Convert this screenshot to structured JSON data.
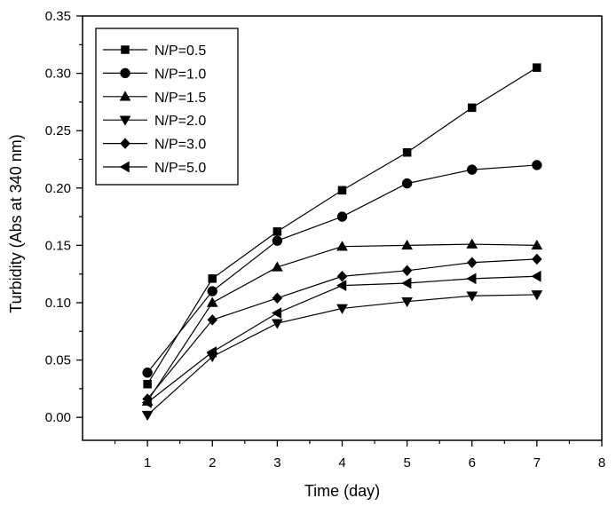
{
  "chart_data": {
    "type": "line",
    "xlabel": "Time (day)",
    "ylabel": "Turbidity (Abs at 340 nm)",
    "xlim": [
      0,
      8
    ],
    "ylim": [
      -0.02,
      0.35
    ],
    "x_ticks": [
      1,
      2,
      3,
      4,
      5,
      6,
      7,
      8
    ],
    "x_tick_labels": [
      "1",
      "2",
      "3",
      "4",
      "5",
      "6",
      "7",
      "8"
    ],
    "y_ticks": [
      0.0,
      0.05,
      0.1,
      0.15,
      0.2,
      0.25,
      0.3,
      0.35
    ],
    "y_tick_labels": [
      "0.00",
      "0.05",
      "0.10",
      "0.15",
      "0.20",
      "0.25",
      "0.30",
      "0.35"
    ],
    "grid": false,
    "legend_position": "top-left",
    "color": "#000000",
    "x": [
      1,
      2,
      3,
      4,
      5,
      6,
      7
    ],
    "series": [
      {
        "name": "N/P=0.5",
        "marker": "square",
        "values": [
          0.029,
          0.121,
          0.162,
          0.198,
          0.231,
          0.27,
          0.305
        ]
      },
      {
        "name": "N/P=1.0",
        "marker": "circle",
        "values": [
          0.039,
          0.11,
          0.154,
          0.175,
          0.204,
          0.216,
          0.22
        ]
      },
      {
        "name": "N/P=1.5",
        "marker": "triangle-up",
        "values": [
          0.014,
          0.1,
          0.131,
          0.149,
          0.15,
          0.151,
          0.15
        ]
      },
      {
        "name": "N/P=2.0",
        "marker": "triangle-down",
        "values": [
          0.002,
          0.053,
          0.082,
          0.095,
          0.101,
          0.106,
          0.107
        ]
      },
      {
        "name": "N/P=3.0",
        "marker": "diamond",
        "values": [
          0.016,
          0.085,
          0.104,
          0.123,
          0.128,
          0.135,
          0.138
        ]
      },
      {
        "name": "N/P=5.0",
        "marker": "triangle-left",
        "values": [
          0.013,
          0.057,
          0.091,
          0.115,
          0.117,
          0.121,
          0.123
        ]
      }
    ]
  }
}
